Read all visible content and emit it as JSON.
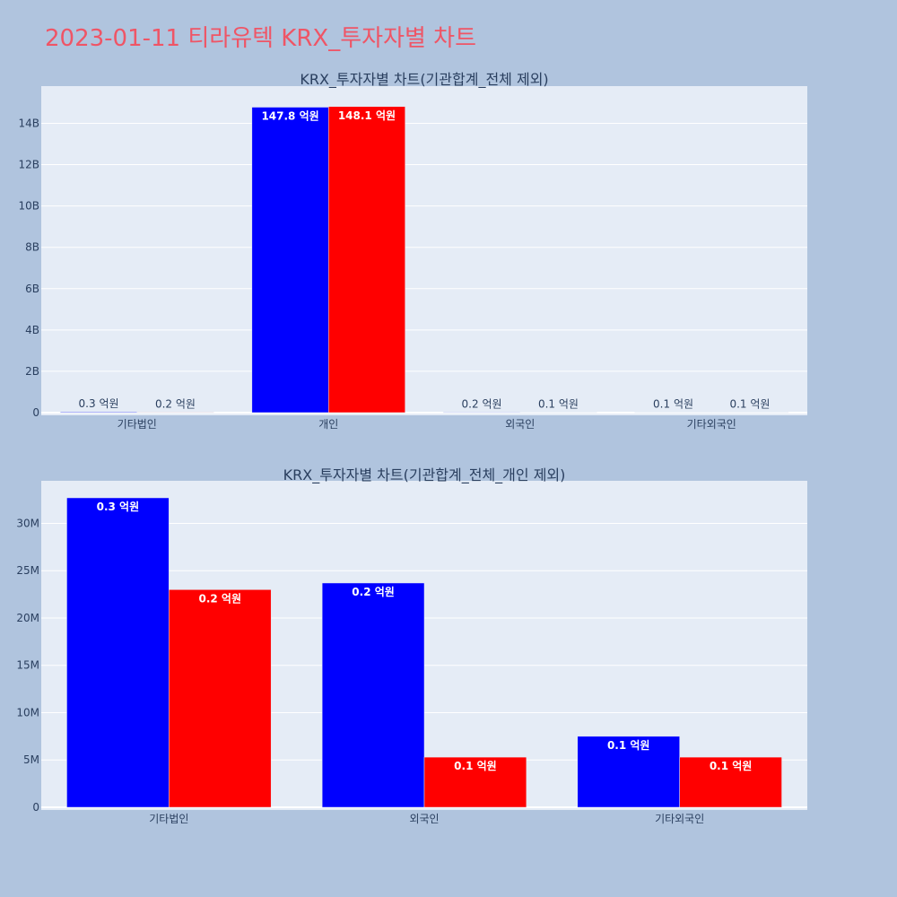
{
  "title": "2023-01-11 티라유텍 KRX_투자자별 차트",
  "colors": {
    "buy": "#0000ff",
    "sell": "#ff0000",
    "plot_bg": "#e5ecf6",
    "page_bg": "#b0c4de",
    "title": "#ef5566"
  },
  "chart_data": [
    {
      "type": "bar",
      "title": "KRX_투자자별 차트(기관합계_전체 제외)",
      "categories": [
        "기타법인",
        "개인",
        "외국인",
        "기타외국인"
      ],
      "series": [
        {
          "values": [
            32700000,
            14780000000,
            23700000,
            7500000
          ],
          "labels": [
            "0.3 억원",
            "147.8 억원",
            "0.2 억원",
            "0.1 억원"
          ]
        },
        {
          "values": [
            23000000,
            14810000000,
            5300000,
            5300000
          ],
          "labels": [
            "0.2 억원",
            "148.1 억원",
            "0.1 억원",
            "0.1 억원"
          ]
        }
      ],
      "ylim": [
        0,
        15800000000
      ],
      "yticks": [
        0,
        2000000000,
        4000000000,
        6000000000,
        8000000000,
        10000000000,
        12000000000,
        14000000000
      ],
      "ytick_labels": [
        "0",
        "2B",
        "4B",
        "6B",
        "8B",
        "10B",
        "12B",
        "14B"
      ],
      "grid": true
    },
    {
      "type": "bar",
      "title": "KRX_투자자별 차트(기관합계_전체_개인 제외)",
      "categories": [
        "기타법인",
        "외국인",
        "기타외국인"
      ],
      "series": [
        {
          "values": [
            32700000,
            23700000,
            7500000
          ],
          "labels": [
            "0.3 억원",
            "0.2 억원",
            "0.1 억원"
          ]
        },
        {
          "values": [
            23000000,
            5300000,
            5300000
          ],
          "labels": [
            "0.2 억원",
            "0.1 억원",
            "0.1 억원"
          ]
        }
      ],
      "ylim": [
        0,
        34500000
      ],
      "yticks": [
        0,
        5000000,
        10000000,
        15000000,
        20000000,
        25000000,
        30000000
      ],
      "ytick_labels": [
        "0",
        "5M",
        "10M",
        "15M",
        "20M",
        "25M",
        "30M"
      ],
      "grid": true
    }
  ]
}
